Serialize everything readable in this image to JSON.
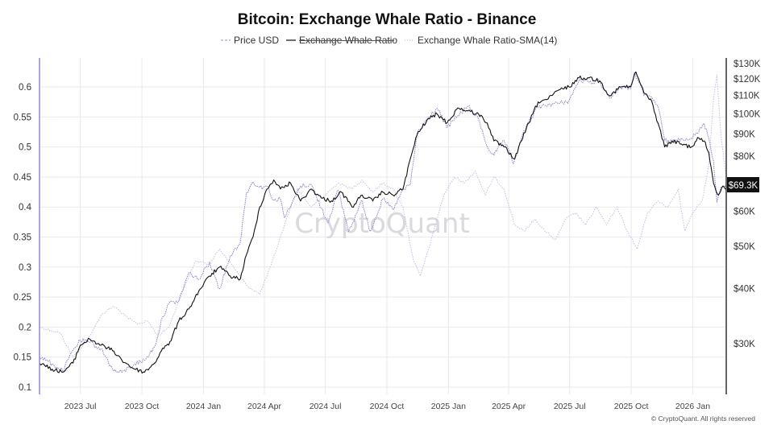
{
  "title": "Bitcoin: Exchange Whale Ratio - Binance",
  "legend": [
    {
      "label": "Price USD",
      "color": "#a6a6c8",
      "dash": "3,2",
      "struck": false
    },
    {
      "label": "Exchange Whale Ratio",
      "color": "#111111",
      "dash": "",
      "struck": true
    },
    {
      "label": "Exchange Whale Ratio-SMA(14)",
      "color": "#c8c8e0",
      "dash": "1,2",
      "struck": false
    }
  ],
  "watermark": "CryptoQuant",
  "copyright": "© CryptoQuant. All rights reserved",
  "price_label": "$69.3K",
  "colors": {
    "ratio_line": "#111111",
    "price_line": "#8a82c8",
    "left_axis": "#8f87d6",
    "right_axis": "#333333",
    "price_label_bg": "#111111"
  },
  "chart_data": {
    "type": "line",
    "title": "Bitcoin: Exchange Whale Ratio - Binance",
    "x_ticks": [
      "2023 Jul",
      "2023 Oct",
      "2024 Jan",
      "2024 Apr",
      "2024 Jul",
      "2024 Oct",
      "2025 Jan",
      "2025 Apr",
      "2025 Jul",
      "2025 Oct",
      "2026 Jan"
    ],
    "x_range": [
      "2023-05-01",
      "2026-02-20"
    ],
    "y_left": {
      "ticks": [
        "0.1",
        "0.15",
        "0.2",
        "0.25",
        "0.3",
        "0.35",
        "0.4",
        "0.45",
        "0.5",
        "0.55",
        "0.6"
      ],
      "range": [
        0.1,
        0.6
      ]
    },
    "y_right": {
      "scale": "log",
      "ticks": [
        "$30K",
        "$40K",
        "$50K",
        "$60K",
        "$80K",
        "$90K",
        "$100K",
        "$110K",
        "$120K",
        "$130K"
      ]
    },
    "legend_position": "top-center",
    "grid": true,
    "series": [
      {
        "name": "Exchange Whale Ratio",
        "axis": "left",
        "points": [
          [
            "2023-05-01",
            0.14
          ],
          [
            "2023-05-20",
            0.13
          ],
          [
            "2023-06-05",
            0.125
          ],
          [
            "2023-06-20",
            0.14
          ],
          [
            "2023-07-01",
            0.17
          ],
          [
            "2023-07-15",
            0.18
          ],
          [
            "2023-08-01",
            0.17
          ],
          [
            "2023-08-20",
            0.16
          ],
          [
            "2023-09-01",
            0.145
          ],
          [
            "2023-09-20",
            0.13
          ],
          [
            "2023-10-05",
            0.125
          ],
          [
            "2023-10-20",
            0.14
          ],
          [
            "2023-11-01",
            0.165
          ],
          [
            "2023-11-10",
            0.17
          ],
          [
            "2023-11-25",
            0.21
          ],
          [
            "2023-12-10",
            0.23
          ],
          [
            "2023-12-25",
            0.26
          ],
          [
            "2024-01-10",
            0.285
          ],
          [
            "2024-01-25",
            0.3
          ],
          [
            "2024-02-10",
            0.285
          ],
          [
            "2024-02-25",
            0.28
          ],
          [
            "2024-03-05",
            0.32
          ],
          [
            "2024-03-15",
            0.35
          ],
          [
            "2024-03-25",
            0.4
          ],
          [
            "2024-04-05",
            0.43
          ],
          [
            "2024-04-15",
            0.445
          ],
          [
            "2024-04-25",
            0.43
          ],
          [
            "2024-05-10",
            0.44
          ],
          [
            "2024-05-25",
            0.41
          ],
          [
            "2024-06-10",
            0.43
          ],
          [
            "2024-06-25",
            0.415
          ],
          [
            "2024-07-10",
            0.41
          ],
          [
            "2024-07-25",
            0.425
          ],
          [
            "2024-08-10",
            0.4
          ],
          [
            "2024-08-25",
            0.42
          ],
          [
            "2024-09-10",
            0.41
          ],
          [
            "2024-09-25",
            0.425
          ],
          [
            "2024-10-10",
            0.42
          ],
          [
            "2024-10-25",
            0.43
          ],
          [
            "2024-11-05",
            0.48
          ],
          [
            "2024-11-15",
            0.52
          ],
          [
            "2024-11-30",
            0.545
          ],
          [
            "2024-12-15",
            0.555
          ],
          [
            "2024-12-30",
            0.54
          ],
          [
            "2025-01-15",
            0.565
          ],
          [
            "2025-01-30",
            0.56
          ],
          [
            "2025-02-15",
            0.555
          ],
          [
            "2025-02-28",
            0.54
          ],
          [
            "2025-03-10",
            0.51
          ],
          [
            "2025-03-25",
            0.5
          ],
          [
            "2025-04-10",
            0.48
          ],
          [
            "2025-04-20",
            0.51
          ],
          [
            "2025-05-01",
            0.54
          ],
          [
            "2025-05-15",
            0.575
          ],
          [
            "2025-05-30",
            0.58
          ],
          [
            "2025-06-15",
            0.595
          ],
          [
            "2025-06-30",
            0.6
          ],
          [
            "2025-07-15",
            0.615
          ],
          [
            "2025-07-30",
            0.615
          ],
          [
            "2025-08-15",
            0.61
          ],
          [
            "2025-08-30",
            0.585
          ],
          [
            "2025-09-15",
            0.6
          ],
          [
            "2025-09-30",
            0.6
          ],
          [
            "2025-10-08",
            0.625
          ],
          [
            "2025-10-20",
            0.59
          ],
          [
            "2025-10-30",
            0.58
          ],
          [
            "2025-11-10",
            0.54
          ],
          [
            "2025-11-20",
            0.5
          ],
          [
            "2025-12-01",
            0.51
          ],
          [
            "2025-12-15",
            0.505
          ],
          [
            "2025-12-30",
            0.5
          ],
          [
            "2026-01-10",
            0.515
          ],
          [
            "2026-01-18",
            0.51
          ],
          [
            "2026-01-25",
            0.49
          ],
          [
            "2026-02-01",
            0.44
          ],
          [
            "2026-02-08",
            0.42
          ],
          [
            "2026-02-15",
            0.435
          ],
          [
            "2026-02-20",
            0.43
          ]
        ]
      },
      {
        "name": "Price USD",
        "axis": "right",
        "points": [
          [
            "2023-05-01",
            28000
          ],
          [
            "2023-05-20",
            27000
          ],
          [
            "2023-06-05",
            26000
          ],
          [
            "2023-06-20",
            29000
          ],
          [
            "2023-07-01",
            30500
          ],
          [
            "2023-07-15",
            30200
          ],
          [
            "2023-08-01",
            29200
          ],
          [
            "2023-08-20",
            26000
          ],
          [
            "2023-09-01",
            25800
          ],
          [
            "2023-09-20",
            27000
          ],
          [
            "2023-10-05",
            27500
          ],
          [
            "2023-10-20",
            29500
          ],
          [
            "2023-11-01",
            34500
          ],
          [
            "2023-11-10",
            37000
          ],
          [
            "2023-11-25",
            37500
          ],
          [
            "2023-12-10",
            43500
          ],
          [
            "2023-12-25",
            42000
          ],
          [
            "2024-01-10",
            46000
          ],
          [
            "2024-01-25",
            40000
          ],
          [
            "2024-02-10",
            47500
          ],
          [
            "2024-02-25",
            51000
          ],
          [
            "2024-03-05",
            66000
          ],
          [
            "2024-03-15",
            70000
          ],
          [
            "2024-03-25",
            68000
          ],
          [
            "2024-04-05",
            68500
          ],
          [
            "2024-04-15",
            63500
          ],
          [
            "2024-04-25",
            64000
          ],
          [
            "2024-05-01",
            58000
          ],
          [
            "2024-05-10",
            61500
          ],
          [
            "2024-05-25",
            68500
          ],
          [
            "2024-06-10",
            69000
          ],
          [
            "2024-06-25",
            61000
          ],
          [
            "2024-07-05",
            56500
          ],
          [
            "2024-07-20",
            67000
          ],
          [
            "2024-08-05",
            54000
          ],
          [
            "2024-08-25",
            63500
          ],
          [
            "2024-09-06",
            54000
          ],
          [
            "2024-09-25",
            64000
          ],
          [
            "2024-10-10",
            60500
          ],
          [
            "2024-10-25",
            67000
          ],
          [
            "2024-11-05",
            69000
          ],
          [
            "2024-11-15",
            90000
          ],
          [
            "2024-11-30",
            97000
          ],
          [
            "2024-12-15",
            103000
          ],
          [
            "2024-12-30",
            93000
          ],
          [
            "2025-01-15",
            99000
          ],
          [
            "2025-01-30",
            104000
          ],
          [
            "2025-02-15",
            97000
          ],
          [
            "2025-02-28",
            84000
          ],
          [
            "2025-03-10",
            80500
          ],
          [
            "2025-03-25",
            87000
          ],
          [
            "2025-04-08",
            77000
          ],
          [
            "2025-04-20",
            88000
          ],
          [
            "2025-05-01",
            96000
          ],
          [
            "2025-05-15",
            103500
          ],
          [
            "2025-05-30",
            105000
          ],
          [
            "2025-06-15",
            105500
          ],
          [
            "2025-06-30",
            107000
          ],
          [
            "2025-07-15",
            119000
          ],
          [
            "2025-07-30",
            118000
          ],
          [
            "2025-08-15",
            118500
          ],
          [
            "2025-08-30",
            108500
          ],
          [
            "2025-09-15",
            115000
          ],
          [
            "2025-09-30",
            114000
          ],
          [
            "2025-10-06",
            124500
          ],
          [
            "2025-10-20",
            110000
          ],
          [
            "2025-10-30",
            109500
          ],
          [
            "2025-11-10",
            104000
          ],
          [
            "2025-11-20",
            87000
          ],
          [
            "2025-12-01",
            86000
          ],
          [
            "2025-12-15",
            88000
          ],
          [
            "2025-12-30",
            88000
          ],
          [
            "2026-01-10",
            91000
          ],
          [
            "2026-01-18",
            95000
          ],
          [
            "2026-01-25",
            88000
          ],
          [
            "2026-02-01",
            78000
          ],
          [
            "2026-02-06",
            63000
          ],
          [
            "2026-02-12",
            68000
          ],
          [
            "2026-02-20",
            69300
          ]
        ]
      },
      {
        "name": "Exchange Whale Ratio-SMA(14)",
        "axis": "left",
        "points": [
          [
            "2023-05-01",
            0.2
          ],
          [
            "2023-06-01",
            0.19
          ],
          [
            "2023-06-20",
            0.15
          ],
          [
            "2023-07-10",
            0.175
          ],
          [
            "2023-08-01",
            0.22
          ],
          [
            "2023-08-20",
            0.235
          ],
          [
            "2023-09-10",
            0.215
          ],
          [
            "2023-09-25",
            0.205
          ],
          [
            "2023-10-10",
            0.21
          ],
          [
            "2023-10-25",
            0.185
          ],
          [
            "2023-11-10",
            0.2
          ],
          [
            "2023-12-01",
            0.26
          ],
          [
            "2023-12-20",
            0.31
          ],
          [
            "2024-01-10",
            0.305
          ],
          [
            "2024-01-25",
            0.33
          ],
          [
            "2024-02-15",
            0.3
          ],
          [
            "2024-03-05",
            0.27
          ],
          [
            "2024-03-25",
            0.255
          ],
          [
            "2024-04-10",
            0.3
          ],
          [
            "2024-05-01",
            0.37
          ],
          [
            "2024-05-20",
            0.43
          ],
          [
            "2024-06-10",
            0.4
          ],
          [
            "2024-07-01",
            0.42
          ],
          [
            "2024-07-20",
            0.44
          ],
          [
            "2024-08-10",
            0.43
          ],
          [
            "2024-08-25",
            0.445
          ],
          [
            "2024-09-10",
            0.425
          ],
          [
            "2024-09-25",
            0.44
          ],
          [
            "2024-10-10",
            0.43
          ],
          [
            "2024-10-25",
            0.4
          ],
          [
            "2024-11-10",
            0.31
          ],
          [
            "2024-11-20",
            0.285
          ],
          [
            "2024-12-05",
            0.34
          ],
          [
            "2024-12-25",
            0.42
          ],
          [
            "2025-01-10",
            0.45
          ],
          [
            "2025-01-25",
            0.44
          ],
          [
            "2025-02-10",
            0.46
          ],
          [
            "2025-02-25",
            0.42
          ],
          [
            "2025-03-10",
            0.45
          ],
          [
            "2025-03-25",
            0.43
          ],
          [
            "2025-04-10",
            0.37
          ],
          [
            "2025-04-25",
            0.36
          ],
          [
            "2025-05-10",
            0.38
          ],
          [
            "2025-05-25",
            0.36
          ],
          [
            "2025-06-10",
            0.345
          ],
          [
            "2025-06-25",
            0.38
          ],
          [
            "2025-07-10",
            0.39
          ],
          [
            "2025-07-25",
            0.37
          ],
          [
            "2025-08-10",
            0.4
          ],
          [
            "2025-08-25",
            0.37
          ],
          [
            "2025-09-10",
            0.4
          ],
          [
            "2025-09-25",
            0.36
          ],
          [
            "2025-10-10",
            0.33
          ],
          [
            "2025-10-25",
            0.39
          ],
          [
            "2025-11-10",
            0.41
          ],
          [
            "2025-11-25",
            0.4
          ],
          [
            "2025-12-10",
            0.43
          ],
          [
            "2025-12-20",
            0.36
          ],
          [
            "2026-01-01",
            0.39
          ],
          [
            "2026-01-15",
            0.41
          ],
          [
            "2026-01-25",
            0.47
          ],
          [
            "2026-02-01",
            0.58
          ],
          [
            "2026-02-06",
            0.62
          ],
          [
            "2026-02-12",
            0.52
          ],
          [
            "2026-02-20",
            0.45
          ]
        ]
      }
    ]
  }
}
